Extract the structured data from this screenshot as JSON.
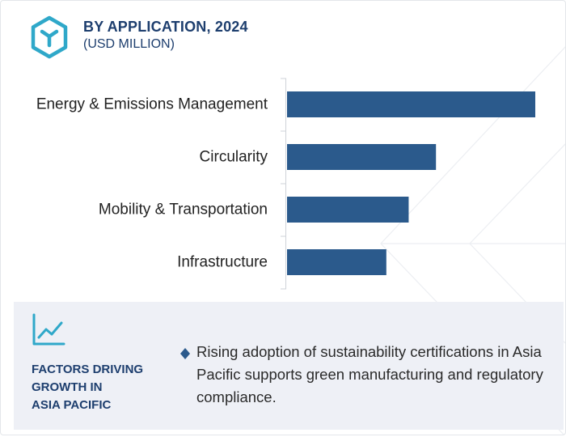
{
  "header": {
    "title": "BY APPLICATION, 2024",
    "subtitle": "(USD MILLION)",
    "icon": "cube-logo-icon",
    "accent_color": "#2fa8c9"
  },
  "chart_data": {
    "type": "bar",
    "orientation": "horizontal",
    "categories": [
      "Energy & Emissions Management",
      "Circularity",
      "Mobility & Transportation",
      "Infrastructure"
    ],
    "values": [
      100,
      60,
      49,
      40
    ],
    "bar_color": "#2b5a8c",
    "grid": false
  },
  "factors": {
    "icon": "trend-chart-icon",
    "title_lines": [
      "FACTORS DRIVING",
      "GROWTH IN",
      "ASIA PACIFIC"
    ],
    "bullet_icon": "diamond-bullet-icon",
    "bullet_text": "Rising adoption of sustainability certifications in Asia Pacific supports green manufacturing and regulatory compliance."
  }
}
